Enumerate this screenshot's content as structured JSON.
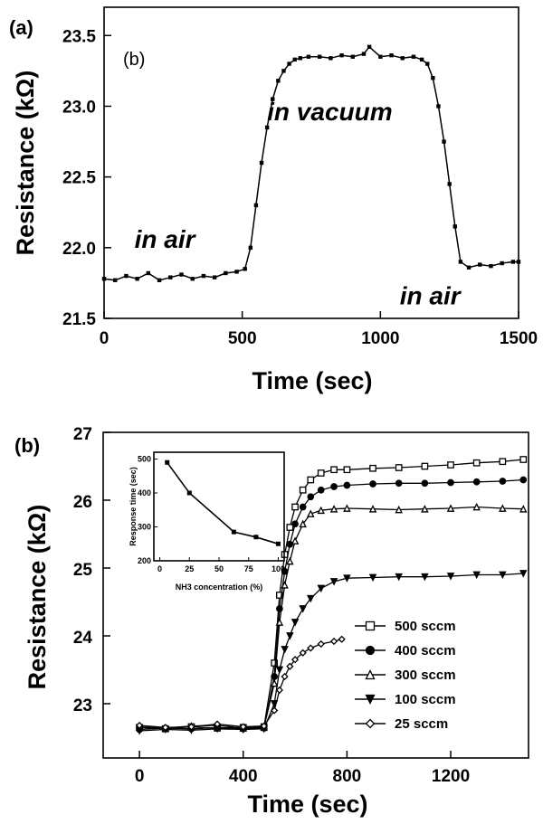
{
  "chart_data": [
    {
      "type": "line",
      "panel_label": "(a)",
      "inner_label": "(b)",
      "xlabel": "Time (sec)",
      "ylabel": "Resistance (kΩ)",
      "xlim": [
        0,
        1500
      ],
      "ylim": [
        21.5,
        23.7
      ],
      "xticks": [
        0,
        500,
        1000,
        1500
      ],
      "xtick_labels": [
        "0",
        "500",
        "1000",
        "1500"
      ],
      "yticks": [
        21.5,
        22.0,
        22.5,
        23.0,
        23.5
      ],
      "ytick_labels": [
        "21.5",
        "22.0",
        "22.5",
        "23.0",
        "23.5"
      ],
      "annotations": [
        {
          "text": "in air",
          "x": 110,
          "y": 22.0
        },
        {
          "text": "in vacuum",
          "x": 590,
          "y": 22.9
        },
        {
          "text": "in air",
          "x": 1070,
          "y": 21.6
        }
      ],
      "series": [
        {
          "x": [
            0,
            40,
            80,
            120,
            160,
            200,
            240,
            280,
            320,
            360,
            400,
            440,
            480,
            510,
            530,
            550,
            570,
            590,
            610,
            630,
            650,
            670,
            690,
            710,
            740,
            780,
            820,
            860,
            900,
            940,
            960,
            1000,
            1040,
            1080,
            1120,
            1150,
            1170,
            1190,
            1210,
            1230,
            1250,
            1270,
            1290,
            1320,
            1360,
            1400,
            1440,
            1480,
            1500
          ],
          "y": [
            21.78,
            21.77,
            21.8,
            21.78,
            21.82,
            21.77,
            21.79,
            21.81,
            21.78,
            21.8,
            21.79,
            21.82,
            21.83,
            21.85,
            22.0,
            22.3,
            22.6,
            22.85,
            23.05,
            23.18,
            23.25,
            23.3,
            23.33,
            23.34,
            23.35,
            23.35,
            23.34,
            23.36,
            23.35,
            23.37,
            23.42,
            23.35,
            23.36,
            23.34,
            23.35,
            23.33,
            23.3,
            23.2,
            23.0,
            22.75,
            22.45,
            22.15,
            21.9,
            21.86,
            21.88,
            21.87,
            21.89,
            21.9,
            21.9
          ]
        }
      ]
    },
    {
      "type": "line",
      "panel_label": "(b)",
      "xlabel": "Time (sec)",
      "ylabel": "Resistance (kΩ)",
      "xlim": [
        -140,
        1500
      ],
      "ylim": [
        22.2,
        27.0
      ],
      "xticks": [
        0,
        400,
        800,
        1200
      ],
      "xtick_labels": [
        "0",
        "400",
        "800",
        "1200"
      ],
      "yticks": [
        23,
        24,
        25,
        26,
        27
      ],
      "ytick_labels": [
        "23",
        "24",
        "25",
        "26",
        "27"
      ],
      "series": [
        {
          "name": "500 sccm",
          "marker": "open-square",
          "x": [
            0,
            100,
            200,
            300,
            400,
            480,
            520,
            540,
            560,
            580,
            600,
            630,
            660,
            700,
            750,
            800,
            900,
            1000,
            1100,
            1200,
            1300,
            1400,
            1480
          ],
          "y": [
            22.65,
            22.63,
            22.66,
            22.64,
            22.65,
            22.66,
            23.6,
            24.6,
            25.2,
            25.6,
            25.9,
            26.15,
            26.3,
            26.4,
            26.45,
            26.45,
            26.47,
            26.48,
            26.5,
            26.52,
            26.55,
            26.57,
            26.6
          ]
        },
        {
          "name": "400 sccm",
          "marker": "filled-circle",
          "x": [
            0,
            100,
            200,
            300,
            400,
            480,
            520,
            540,
            560,
            580,
            600,
            630,
            660,
            700,
            750,
            800,
            900,
            1000,
            1100,
            1200,
            1300,
            1400,
            1480
          ],
          "y": [
            22.62,
            22.64,
            22.63,
            22.65,
            22.63,
            22.64,
            23.4,
            24.4,
            24.95,
            25.35,
            25.65,
            25.9,
            26.05,
            26.15,
            26.2,
            26.22,
            26.24,
            26.25,
            26.25,
            26.26,
            26.27,
            26.28,
            26.3
          ]
        },
        {
          "name": "300 sccm",
          "marker": "open-triangle",
          "x": [
            0,
            100,
            200,
            300,
            400,
            480,
            520,
            540,
            560,
            580,
            600,
            630,
            660,
            700,
            750,
            800,
            900,
            1000,
            1100,
            1200,
            1300,
            1400,
            1480
          ],
          "y": [
            22.66,
            22.64,
            22.67,
            22.68,
            22.64,
            22.65,
            23.3,
            24.2,
            24.75,
            25.1,
            25.4,
            25.65,
            25.8,
            25.85,
            25.87,
            25.88,
            25.87,
            25.86,
            25.87,
            25.88,
            25.9,
            25.88,
            25.87
          ]
        },
        {
          "name": "100 sccm",
          "marker": "filled-down-triangle",
          "x": [
            0,
            100,
            200,
            300,
            400,
            480,
            520,
            540,
            560,
            580,
            600,
            630,
            660,
            700,
            750,
            800,
            900,
            1000,
            1100,
            1200,
            1300,
            1400,
            1480
          ],
          "y": [
            22.6,
            22.62,
            22.61,
            22.63,
            22.62,
            22.63,
            23.0,
            23.5,
            23.8,
            24.0,
            24.2,
            24.4,
            24.55,
            24.7,
            24.8,
            24.85,
            24.86,
            24.87,
            24.87,
            24.88,
            24.9,
            24.9,
            24.92
          ]
        },
        {
          "name": "25 sccm",
          "marker": "open-diamond",
          "x": [
            0,
            100,
            200,
            300,
            400,
            480,
            520,
            540,
            560,
            580,
            600,
            630,
            660,
            700,
            750,
            780
          ],
          "y": [
            22.68,
            22.65,
            22.66,
            22.7,
            22.66,
            22.67,
            22.9,
            23.2,
            23.4,
            23.55,
            23.65,
            23.75,
            23.82,
            23.88,
            23.92,
            23.95
          ]
        }
      ],
      "legend": {
        "placement": "bottom-right",
        "entries": [
          "500 sccm",
          "400 sccm",
          "300 sccm",
          "100 sccm",
          "25 sccm"
        ]
      },
      "inset": {
        "type": "line",
        "xlabel": "NH3 concentration (%)",
        "ylabel": "Response time (sec)",
        "xlim": [
          -5,
          105
        ],
        "ylim": [
          200,
          520
        ],
        "xticks": [
          0,
          25,
          50,
          75,
          100
        ],
        "xtick_labels": [
          "0",
          "25",
          "50",
          "75",
          "100"
        ],
        "yticks": [
          200,
          300,
          400,
          500
        ],
        "ytick_labels": [
          "200",
          "300",
          "400",
          "500"
        ],
        "series": [
          {
            "marker": "filled-square",
            "x": [
              6.25,
              25,
              62.5,
              81.25,
              100
            ],
            "y": [
              490,
              400,
              285,
              270,
              250
            ]
          }
        ]
      }
    }
  ]
}
